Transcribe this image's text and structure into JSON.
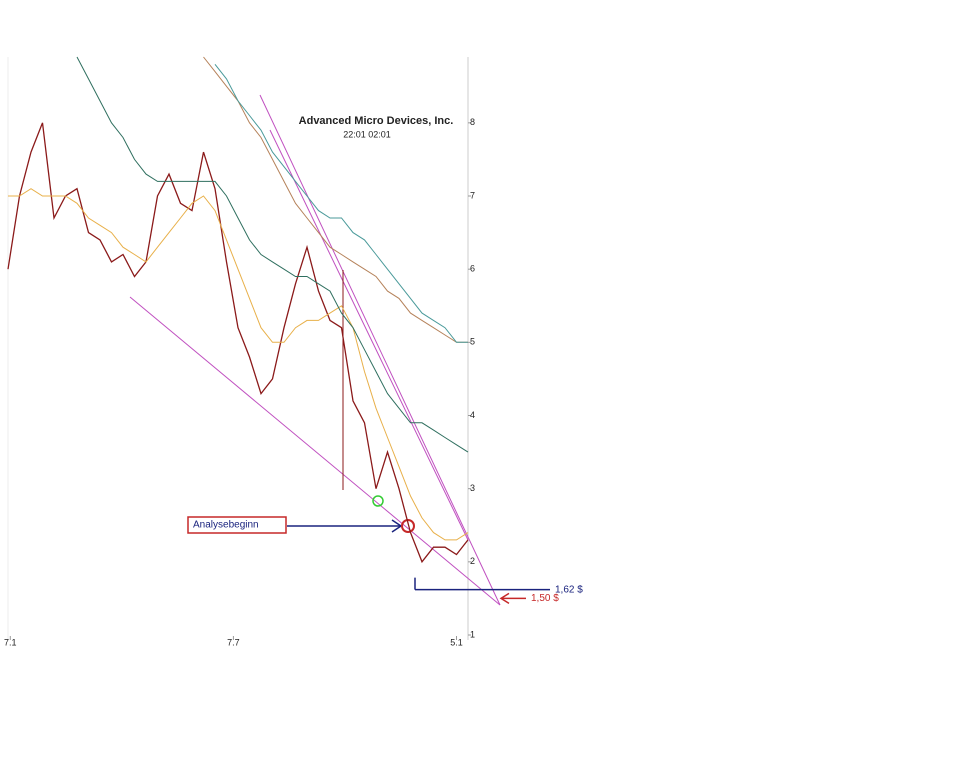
{
  "chart_data": {
    "type": "line",
    "title": "Advanced Micro Devices, Inc.",
    "subtitle": "22:01   02:01",
    "x": [
      0,
      2.5,
      5,
      7.5,
      10,
      12.5,
      15,
      17.5,
      20,
      22.5,
      25,
      27.5,
      30,
      32.5,
      35,
      37.5,
      40,
      42.5,
      45,
      47.5,
      50,
      52.5,
      55,
      57.5,
      60,
      62.5,
      65,
      67.5,
      70,
      72.5,
      75,
      77.5,
      80,
      82.5,
      85,
      87.5,
      90,
      92.5,
      95,
      97.5,
      100
    ],
    "series": [
      {
        "color": "#8b1a1a",
        "values": [
          6.0,
          7.0,
          7.6,
          8.0,
          6.7,
          7.0,
          7.1,
          6.5,
          6.4,
          6.1,
          6.2,
          5.9,
          6.1,
          7.0,
          7.3,
          6.9,
          6.8,
          7.6,
          7.1,
          6.1,
          5.2,
          4.8,
          4.3,
          4.5,
          5.2,
          5.8,
          6.3,
          5.7,
          5.3,
          5.2,
          4.2,
          3.9,
          3.0,
          3.5,
          3.0,
          2.4,
          2.0,
          2.2,
          2.2,
          2.1,
          2.3
        ]
      },
      {
        "color": "#e8b04a",
        "values": [
          7.0,
          7.0,
          7.1,
          7.0,
          7.0,
          7.0,
          6.9,
          6.7,
          6.6,
          6.5,
          6.3,
          6.2,
          6.1,
          6.3,
          6.5,
          6.7,
          6.9,
          7.0,
          6.8,
          6.4,
          6.0,
          5.6,
          5.2,
          5.0,
          5.0,
          5.2,
          5.3,
          5.3,
          5.4,
          5.5,
          5.2,
          4.6,
          4.1,
          3.7,
          3.3,
          2.9,
          2.6,
          2.4,
          2.3,
          2.3,
          2.4
        ]
      },
      {
        "color": "#2f6f5f",
        "values": [
          null,
          null,
          null,
          null,
          null,
          null,
          8.9,
          8.6,
          8.3,
          8.0,
          7.8,
          7.5,
          7.3,
          7.2,
          7.2,
          7.2,
          7.2,
          7.2,
          7.2,
          7.0,
          6.7,
          6.4,
          6.2,
          6.1,
          6.0,
          5.9,
          5.9,
          5.8,
          5.7,
          5.4,
          5.2,
          4.9,
          4.6,
          4.3,
          4.1,
          3.9,
          3.9,
          3.8,
          3.7,
          3.6,
          3.5
        ]
      },
      {
        "color": "#b5825a",
        "values": [
          null,
          null,
          null,
          null,
          null,
          null,
          null,
          null,
          null,
          null,
          null,
          null,
          null,
          null,
          null,
          null,
          null,
          8.9,
          8.7,
          8.5,
          8.3,
          8.0,
          7.8,
          7.5,
          7.2,
          6.9,
          6.7,
          6.5,
          6.3,
          6.2,
          6.1,
          6.0,
          5.9,
          5.7,
          5.6,
          5.4,
          5.3,
          5.2,
          5.1,
          5.0,
          5.0
        ]
      },
      {
        "color": "#4a9a9a",
        "values": [
          null,
          null,
          null,
          null,
          null,
          null,
          null,
          null,
          null,
          null,
          null,
          null,
          null,
          null,
          null,
          null,
          null,
          null,
          8.8,
          8.6,
          8.3,
          8.1,
          7.9,
          7.6,
          7.4,
          7.2,
          7.0,
          6.8,
          6.7,
          6.7,
          6.5,
          6.4,
          6.2,
          6.0,
          5.8,
          5.6,
          5.4,
          5.3,
          5.2,
          5.0,
          5.0
        ]
      }
    ],
    "xlim": [
      0,
      100
    ],
    "xticks": [
      {
        "value": 0.5,
        "label": "7.1"
      },
      {
        "value": 49,
        "label": "7.7"
      },
      {
        "value": 97.5,
        "label": "5.1"
      }
    ],
    "ylim": [
      1,
      8.9
    ],
    "yticks": [
      1,
      2,
      3,
      4,
      5,
      6,
      7,
      8
    ],
    "annotations": [
      {
        "text": "Analysebeginn"
      },
      {
        "text": "1,62 $",
        "value": 1.62,
        "color": "#1a237e"
      },
      {
        "text": "1,50 $",
        "value": 1.5,
        "color": "#c62828"
      }
    ]
  }
}
